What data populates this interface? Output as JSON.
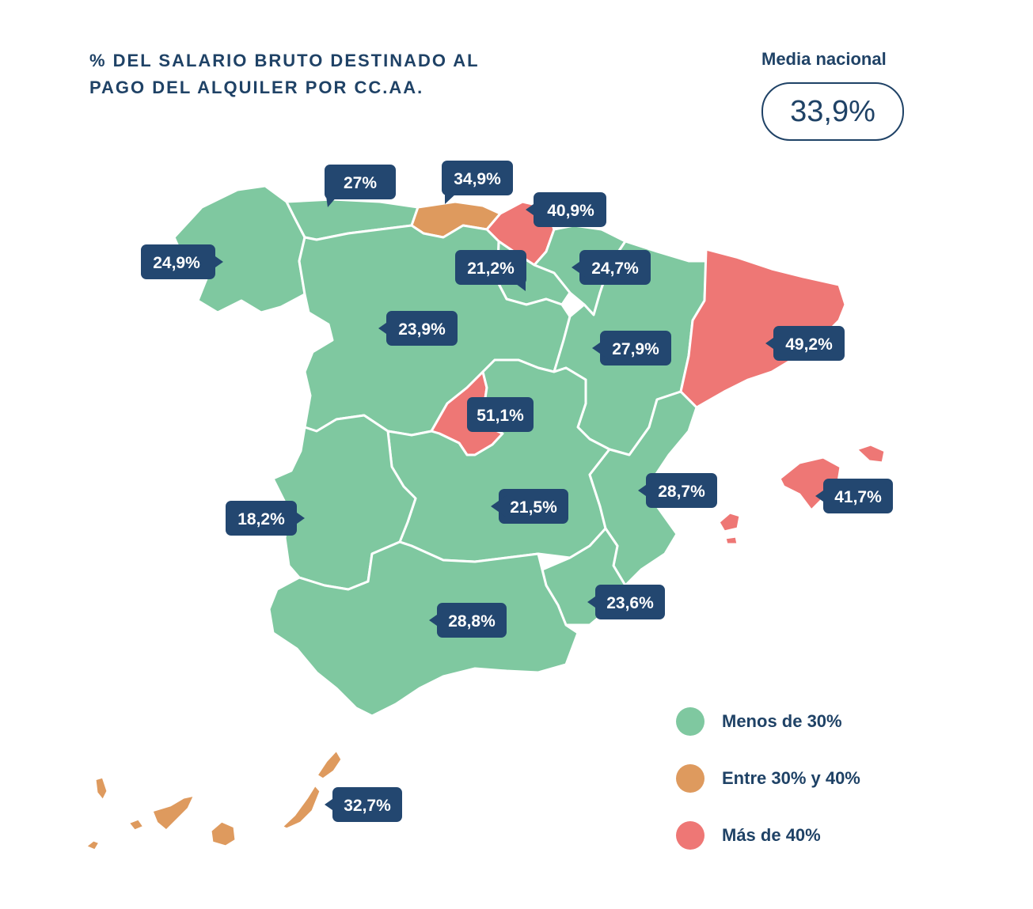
{
  "title": {
    "line1": "% DEL SALARIO BRUTO DESTINADO AL",
    "line2": "PAGO DEL ALQUILER POR CC.AA."
  },
  "national_average": {
    "label": "Media nacional",
    "value": "33,9%"
  },
  "colors": {
    "low": "#7fc8a0",
    "mid": "#de9a5e",
    "high": "#ee7775",
    "label_bg": "#234770",
    "label_text": "#ffffff",
    "text": "#1f4266"
  },
  "regions": {
    "galicia": "24,9%",
    "asturias": "27%",
    "cantabria": "34,9%",
    "pais_vasco": "40,9%",
    "la_rioja": "21,2%",
    "navarra": "24,7%",
    "castilla_leon": "23,9%",
    "aragon": "27,9%",
    "cataluna": "49,2%",
    "madrid": "51,1%",
    "extremadura": "18,2%",
    "castilla_la_mancha": "21,5%",
    "comunidad_valenciana": "28,7%",
    "baleares": "41,7%",
    "murcia": "23,6%",
    "andalucia": "28,8%",
    "canarias": "32,7%"
  },
  "legend": [
    {
      "label": "Menos de 30%",
      "color": "#7fc8a0"
    },
    {
      "label": "Entre 30% y 40%",
      "color": "#de9a5e"
    },
    {
      "label": "Más de 40%",
      "color": "#ee7775"
    }
  ]
}
